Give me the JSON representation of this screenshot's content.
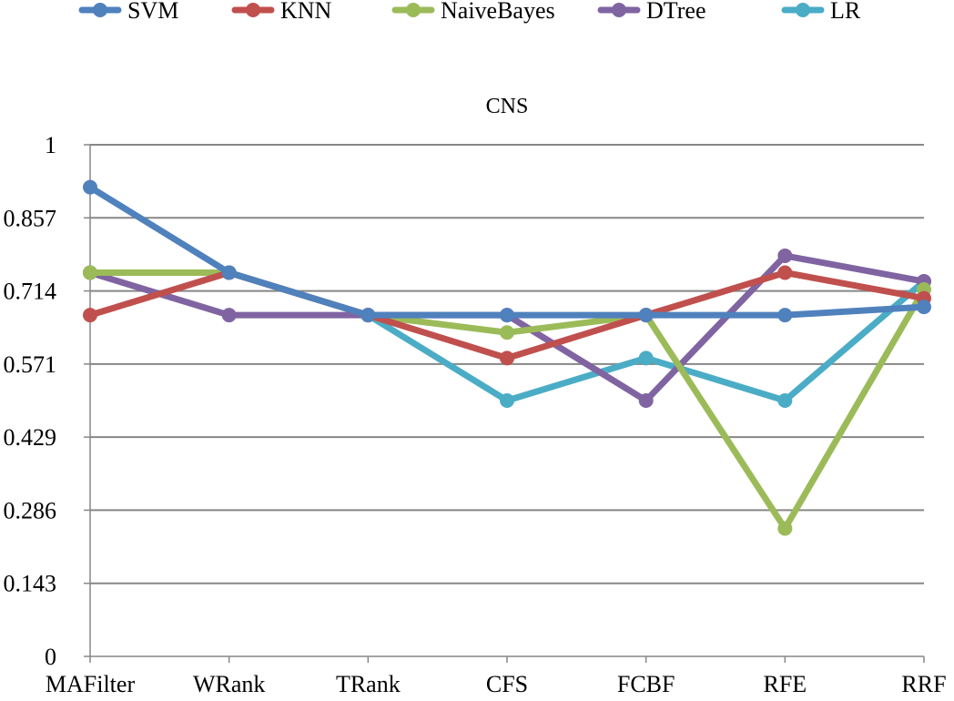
{
  "chart_data": {
    "type": "line",
    "title": "CNS",
    "categories": [
      "MAFilter",
      "WRank",
      "TRank",
      "CFS",
      "FCBF",
      "RFE",
      "RRF"
    ],
    "y_ticks": [
      "0",
      "0.143",
      "0.286",
      "0.429",
      "0.571",
      "0.714",
      "0.857",
      "1"
    ],
    "ylim": [
      0,
      1
    ],
    "grid": true,
    "legend_position": "top",
    "series": [
      {
        "name": "SVM",
        "color": "#4f81bd",
        "values": [
          0.917,
          0.75,
          0.667,
          0.667,
          0.667,
          0.667,
          0.683
        ]
      },
      {
        "name": "KNN",
        "color": "#c0504d",
        "values": [
          0.667,
          0.75,
          0.667,
          0.583,
          0.667,
          0.75,
          0.7
        ]
      },
      {
        "name": "NaiveBayes",
        "color": "#9bbb59",
        "values": [
          0.75,
          0.75,
          0.667,
          0.633,
          0.667,
          0.25,
          0.717
        ]
      },
      {
        "name": "DTree",
        "color": "#8064a2",
        "values": [
          0.75,
          0.667,
          0.667,
          0.667,
          0.5,
          0.783,
          0.733
        ]
      },
      {
        "name": "LR",
        "color": "#4bacc6",
        "values": [
          0.75,
          0.75,
          0.667,
          0.5,
          0.583,
          0.5,
          0.733
        ]
      }
    ],
    "draw_order": [
      "LR",
      "DTree",
      "NaiveBayes",
      "KNN",
      "SVM"
    ]
  }
}
